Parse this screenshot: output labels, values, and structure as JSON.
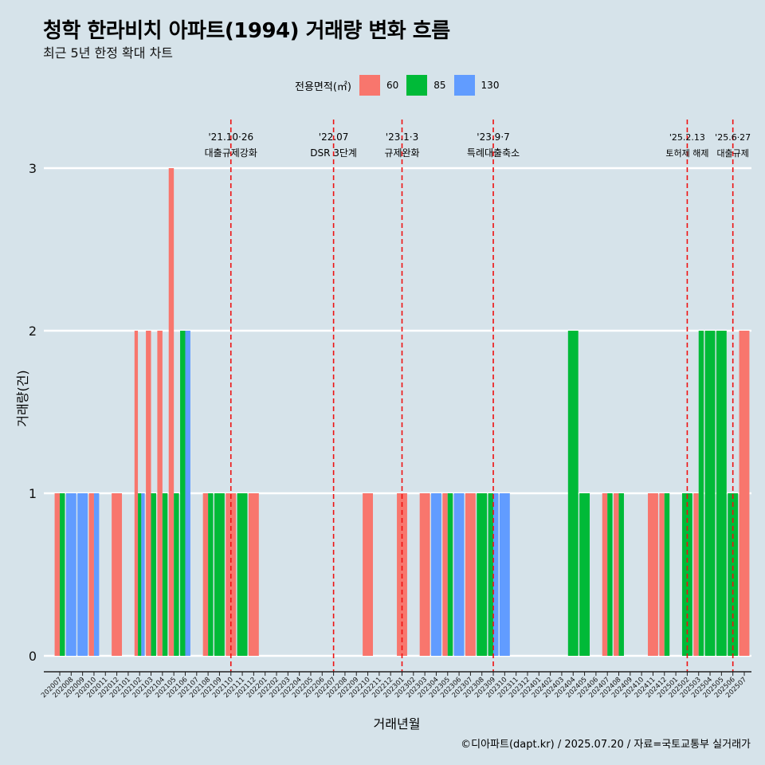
{
  "title": "청학 한라비치 아파트(1994) 거래량 변화 흐름",
  "subtitle": "최근 5년 한정 확대 차트",
  "caption": "©디아파트(dapt.kr) / 2025.07.20 / 자료=국토교통부 실거래가",
  "legend": {
    "title": "전용면적(㎡)",
    "items": [
      {
        "label": "60",
        "color": "#f8766d"
      },
      {
        "label": "85",
        "color": "#00ba38"
      },
      {
        "label": "130",
        "color": "#619cff"
      }
    ]
  },
  "chart_data": {
    "type": "bar",
    "stacking": "dodge",
    "xlabel": "거래년월",
    "ylabel": "거래량(건)",
    "ylim": [
      0,
      3
    ],
    "yticks": [
      0,
      1,
      2,
      3
    ],
    "grid": true,
    "legend_position": "top",
    "categories": [
      "202007",
      "202008",
      "202009",
      "202010",
      "202011",
      "202012",
      "202101",
      "202102",
      "202103",
      "202104",
      "202105",
      "202106",
      "202107",
      "202108",
      "202109",
      "202110",
      "202111",
      "202112",
      "202201",
      "202202",
      "202203",
      "202204",
      "202205",
      "202206",
      "202207",
      "202208",
      "202209",
      "202210",
      "202211",
      "202212",
      "202301",
      "202302",
      "202303",
      "202304",
      "202305",
      "202306",
      "202307",
      "202308",
      "202309",
      "202310",
      "202311",
      "202312",
      "202401",
      "202402",
      "202403",
      "202404",
      "202405",
      "202406",
      "202407",
      "202408",
      "202409",
      "202410",
      "202411",
      "202412",
      "202501",
      "202502",
      "202503",
      "202504",
      "202505",
      "202506",
      "202507"
    ],
    "bars": [
      {
        "month": "202007",
        "series": "60",
        "value": 1
      },
      {
        "month": "202007",
        "series": "85",
        "value": 1
      },
      {
        "month": "202008",
        "series": "130",
        "value": 1
      },
      {
        "month": "202009",
        "series": "130",
        "value": 1
      },
      {
        "month": "202010",
        "series": "60",
        "value": 1
      },
      {
        "month": "202010",
        "series": "130",
        "value": 1
      },
      {
        "month": "202012",
        "series": "60",
        "value": 1
      },
      {
        "month": "202102",
        "series": "60",
        "value": 2
      },
      {
        "month": "202102",
        "series": "85",
        "value": 1
      },
      {
        "month": "202102",
        "series": "130",
        "value": 1
      },
      {
        "month": "202103",
        "series": "60",
        "value": 2
      },
      {
        "month": "202103",
        "series": "85",
        "value": 1
      },
      {
        "month": "202104",
        "series": "60",
        "value": 2
      },
      {
        "month": "202104",
        "series": "85",
        "value": 1
      },
      {
        "month": "202105",
        "series": "60",
        "value": 3
      },
      {
        "month": "202105",
        "series": "85",
        "value": 1
      },
      {
        "month": "202106",
        "series": "85",
        "value": 2
      },
      {
        "month": "202106",
        "series": "130",
        "value": 2
      },
      {
        "month": "202108",
        "series": "60",
        "value": 1
      },
      {
        "month": "202108",
        "series": "85",
        "value": 1
      },
      {
        "month": "202109",
        "series": "85",
        "value": 1
      },
      {
        "month": "202110",
        "series": "60",
        "value": 1
      },
      {
        "month": "202111",
        "series": "85",
        "value": 1
      },
      {
        "month": "202112",
        "series": "60",
        "value": 1
      },
      {
        "month": "202210",
        "series": "60",
        "value": 1
      },
      {
        "month": "202301",
        "series": "60",
        "value": 1
      },
      {
        "month": "202303",
        "series": "60",
        "value": 1
      },
      {
        "month": "202304",
        "series": "130",
        "value": 1
      },
      {
        "month": "202305",
        "series": "60",
        "value": 1
      },
      {
        "month": "202305",
        "series": "85",
        "value": 1
      },
      {
        "month": "202306",
        "series": "130",
        "value": 1
      },
      {
        "month": "202307",
        "series": "60",
        "value": 1
      },
      {
        "month": "202308",
        "series": "85",
        "value": 1
      },
      {
        "month": "202309",
        "series": "85",
        "value": 1
      },
      {
        "month": "202309",
        "series": "130",
        "value": 1
      },
      {
        "month": "202310",
        "series": "130",
        "value": 1
      },
      {
        "month": "202404",
        "series": "85",
        "value": 2
      },
      {
        "month": "202405",
        "series": "85",
        "value": 1
      },
      {
        "month": "202407",
        "series": "60",
        "value": 1
      },
      {
        "month": "202407",
        "series": "85",
        "value": 1
      },
      {
        "month": "202408",
        "series": "60",
        "value": 1
      },
      {
        "month": "202408",
        "series": "85",
        "value": 1
      },
      {
        "month": "202411",
        "series": "60",
        "value": 1
      },
      {
        "month": "202412",
        "series": "60",
        "value": 1
      },
      {
        "month": "202412",
        "series": "85",
        "value": 1
      },
      {
        "month": "202502",
        "series": "85",
        "value": 1
      },
      {
        "month": "202503",
        "series": "60",
        "value": 1
      },
      {
        "month": "202503",
        "series": "85",
        "value": 2
      },
      {
        "month": "202504",
        "series": "85",
        "value": 2
      },
      {
        "month": "202505",
        "series": "85",
        "value": 2
      },
      {
        "month": "202506",
        "series": "85",
        "value": 1
      },
      {
        "month": "202507",
        "series": "60",
        "value": 2
      }
    ],
    "annotations": [
      {
        "month": "202110",
        "date": "'21.10·26",
        "label": "대출규제강화"
      },
      {
        "month": "202207",
        "date": "'22.07",
        "label": "DSR 3단계"
      },
      {
        "month": "202301",
        "date": "'23.1·3",
        "label": "규제완화"
      },
      {
        "month": "202309",
        "date": "'23.9·7",
        "label": "특례대출축소"
      },
      {
        "month": "202502",
        "date": "'25.2.13",
        "label": "토허제 해제"
      },
      {
        "month": "202506",
        "date": "'25.6·27",
        "label": "대출규제"
      }
    ]
  }
}
